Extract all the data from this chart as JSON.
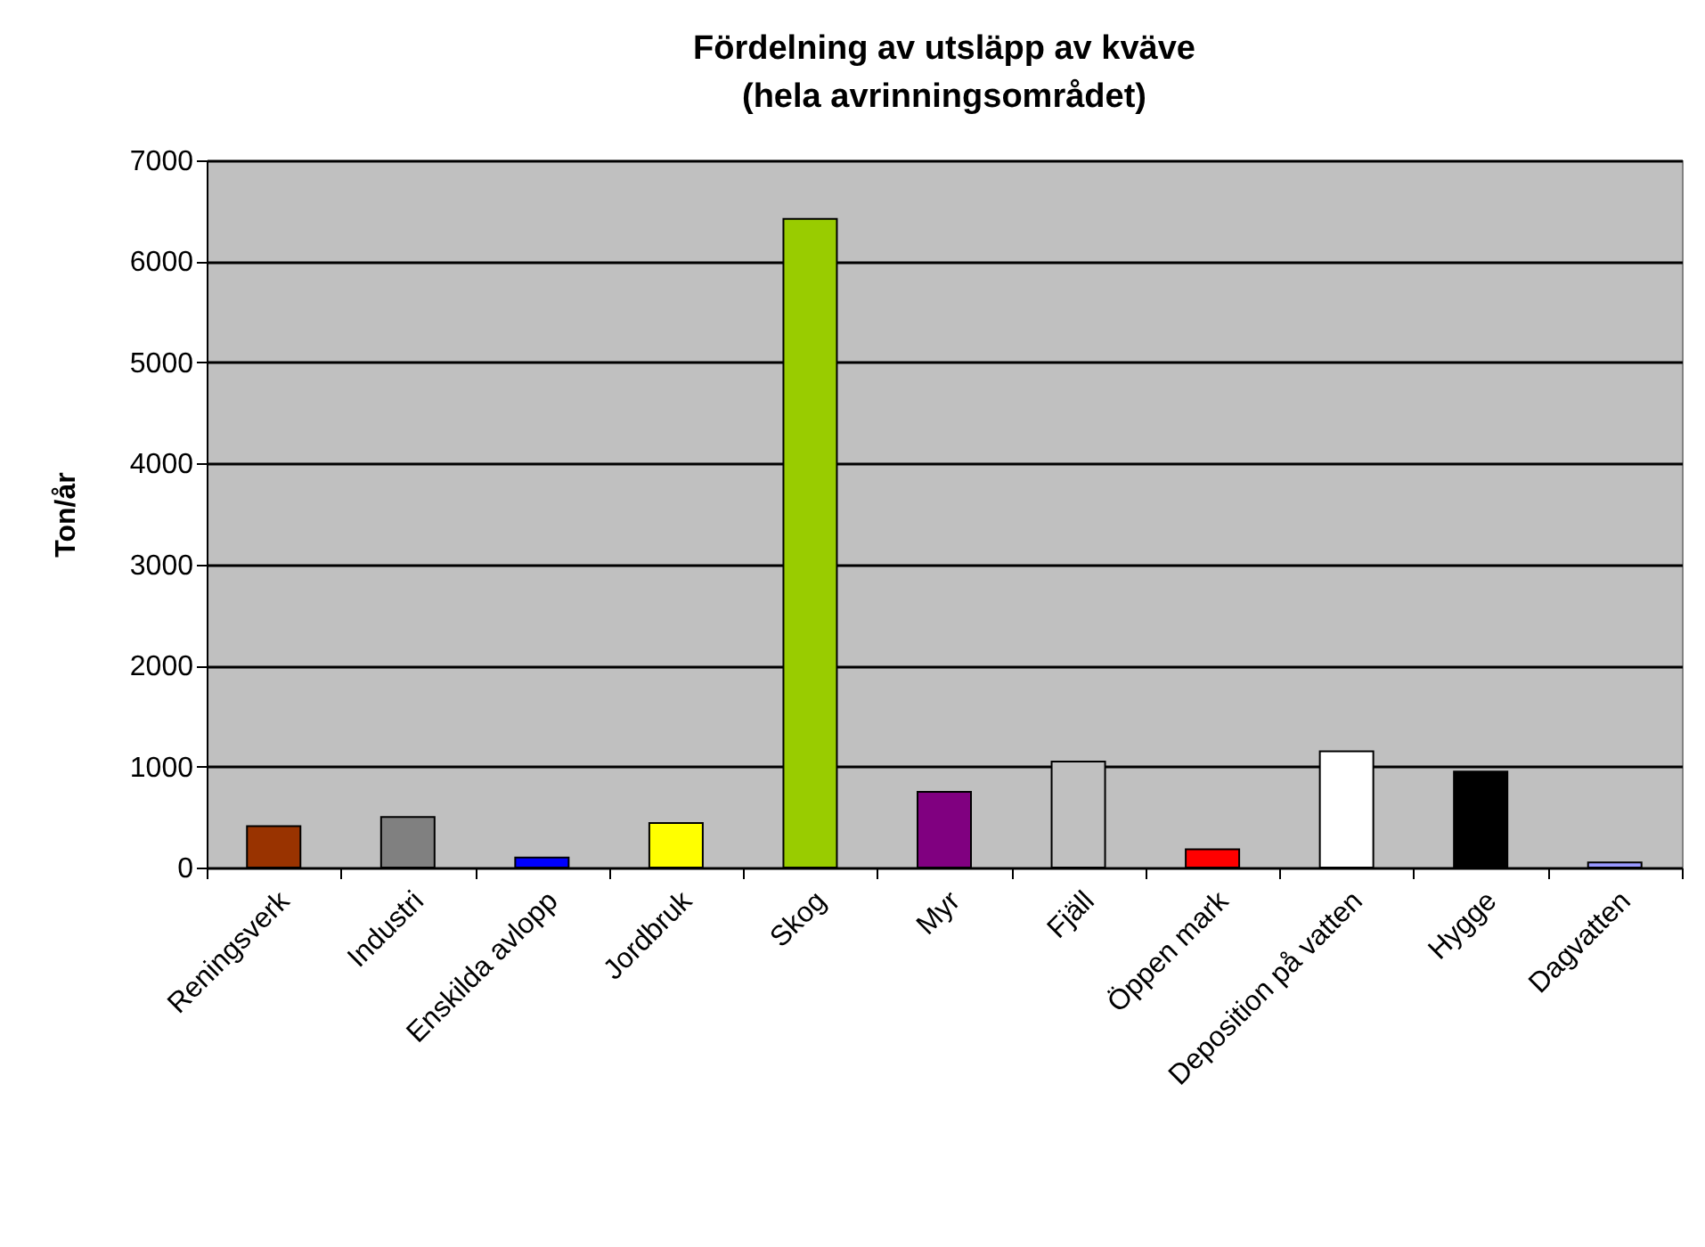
{
  "chart_data": {
    "type": "bar",
    "title": "Fördelning av utsläpp av kväve\n(hela avrinningsområdet)",
    "ylabel": "Ton/år",
    "categories": [
      "Reningsverk",
      "Industri",
      "Enskilda avlopp",
      "Jordbruk",
      "Skog",
      "Myr",
      "Fjäll",
      "Öppen mark",
      "Deposition på vatten",
      "Hygge",
      "Dagvatten"
    ],
    "values": [
      410,
      500,
      100,
      440,
      6420,
      750,
      1050,
      180,
      1150,
      950,
      50
    ],
    "colors": [
      "#993300",
      "#808080",
      "#0000ff",
      "#ffff00",
      "#99cc00",
      "#800080",
      "#c0c0c0",
      "#ff0000",
      "#ffffff",
      "#000000",
      "#9999ff"
    ],
    "ylim": [
      0,
      7000
    ],
    "yticks": [
      0,
      1000,
      2000,
      3000,
      4000,
      5000,
      6000,
      7000
    ],
    "grid": "y"
  }
}
